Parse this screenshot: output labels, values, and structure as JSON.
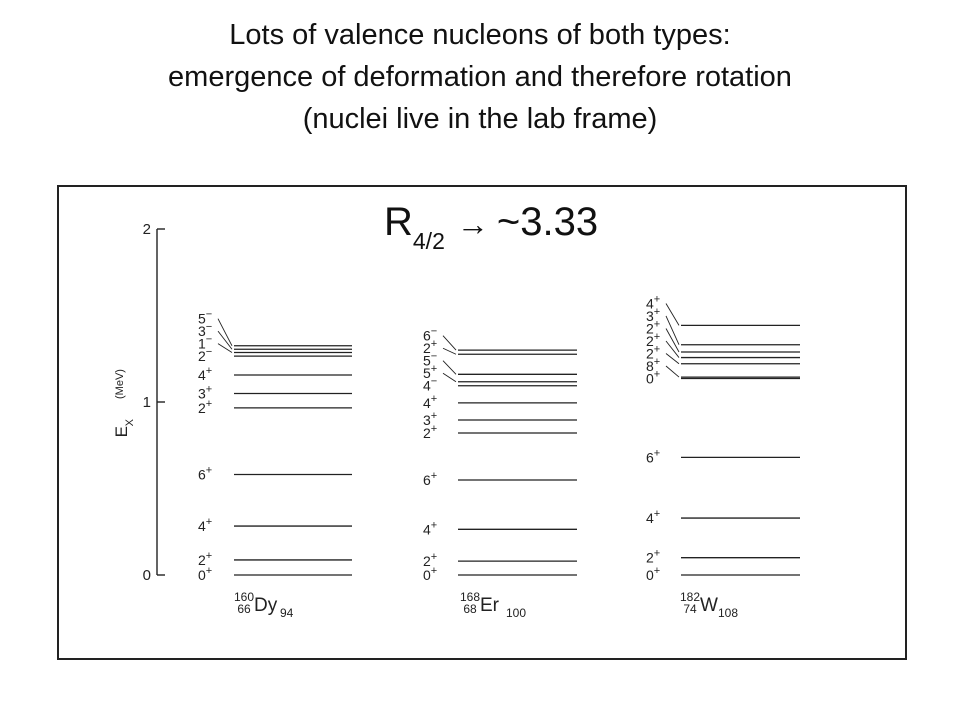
{
  "title": {
    "line1": "Lots of valence nucleons of both types:",
    "line2": "emergence of deformation and therefore rotation",
    "line3": "(nuclei live in the lab frame)"
  },
  "annotation": {
    "main": "R",
    "sub": "4/2",
    "arrow": "→",
    "value": "~3.33"
  },
  "axis": {
    "label": "E",
    "label_sub": "X",
    "unit": "(MeV)",
    "ticks": [
      {
        "label": "2",
        "value": 2
      },
      {
        "label": "1",
        "value": 1
      },
      {
        "label": "0",
        "value": 0
      }
    ]
  },
  "nuclei": [
    {
      "mass": "160",
      "z": "66",
      "symbol": "Dy",
      "n": "94",
      "levels": [
        {
          "spin": "0",
          "parity": "+",
          "energy": 0.0
        },
        {
          "spin": "2",
          "parity": "+",
          "energy": 0.087
        },
        {
          "spin": "4",
          "parity": "+",
          "energy": 0.283
        },
        {
          "spin": "6",
          "parity": "+",
          "energy": 0.581
        },
        {
          "spin": "2",
          "parity": "+",
          "energy": 0.966
        },
        {
          "spin": "3",
          "parity": "+",
          "energy": 1.049
        },
        {
          "spin": "4",
          "parity": "+",
          "energy": 1.156
        },
        {
          "spin": "2",
          "parity": "−",
          "energy": 1.265
        },
        {
          "spin": "1",
          "parity": "−",
          "energy": 1.286
        },
        {
          "spin": "3",
          "parity": "−",
          "energy": 1.305
        },
        {
          "spin": "5",
          "parity": "−",
          "energy": 1.325
        }
      ]
    },
    {
      "mass": "168",
      "z": "68",
      "symbol": "Er",
      "n": "100",
      "levels": [
        {
          "spin": "0",
          "parity": "+",
          "energy": 0.0
        },
        {
          "spin": "2",
          "parity": "+",
          "energy": 0.08
        },
        {
          "spin": "4",
          "parity": "+",
          "energy": 0.264
        },
        {
          "spin": "6",
          "parity": "+",
          "energy": 0.549
        },
        {
          "spin": "2",
          "parity": "+",
          "energy": 0.821
        },
        {
          "spin": "3",
          "parity": "+",
          "energy": 0.896
        },
        {
          "spin": "4",
          "parity": "+",
          "energy": 0.995
        },
        {
          "spin": "4",
          "parity": "−",
          "energy": 1.094
        },
        {
          "spin": "5",
          "parity": "+",
          "energy": 1.117
        },
        {
          "spin": "5",
          "parity": "−",
          "energy": 1.16
        },
        {
          "spin": "2",
          "parity": "+",
          "energy": 1.276
        },
        {
          "spin": "6",
          "parity": "−",
          "energy": 1.3
        }
      ]
    },
    {
      "mass": "182",
      "z": "74",
      "symbol": "W",
      "n": "108",
      "levels": [
        {
          "spin": "0",
          "parity": "+",
          "energy": 0.0
        },
        {
          "spin": "2",
          "parity": "+",
          "energy": 0.1
        },
        {
          "spin": "4",
          "parity": "+",
          "energy": 0.329
        },
        {
          "spin": "6",
          "parity": "+",
          "energy": 0.68
        },
        {
          "spin": "0",
          "parity": "+",
          "energy": 1.136
        },
        {
          "spin": "8",
          "parity": "+",
          "energy": 1.144
        },
        {
          "spin": "2",
          "parity": "+",
          "energy": 1.221
        },
        {
          "spin": "2",
          "parity": "+",
          "energy": 1.257
        },
        {
          "spin": "2",
          "parity": "+",
          "energy": 1.289
        },
        {
          "spin": "3",
          "parity": "+",
          "energy": 1.331
        },
        {
          "spin": "4",
          "parity": "+",
          "energy": 1.443
        }
      ]
    }
  ],
  "colors": {
    "text": "#111111",
    "line": "#222222"
  }
}
